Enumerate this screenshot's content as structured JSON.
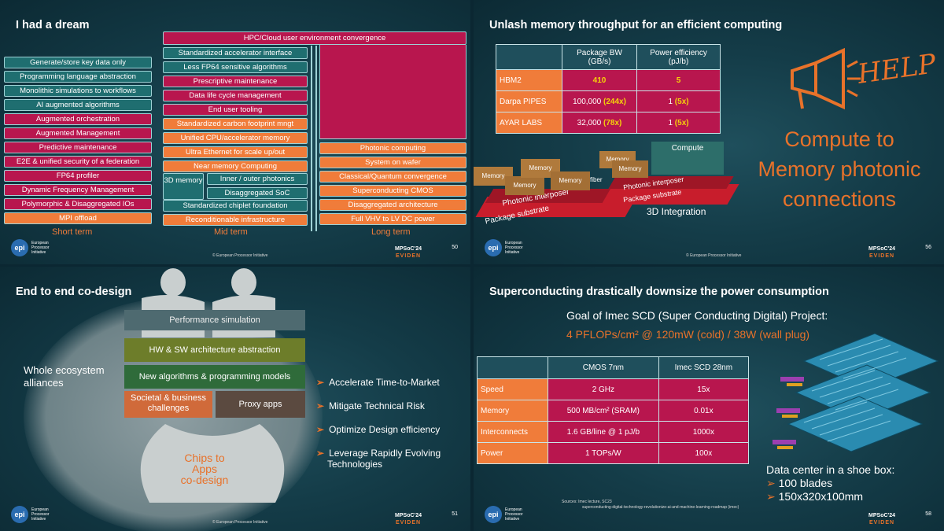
{
  "q1": {
    "title": "I had a dream",
    "top_banner": "HPC/Cloud user environment convergence",
    "short_term": [
      "Generate/store key data only",
      "Programming language abstraction",
      "Monolithic simulations to workflows",
      "AI augmented algorithms",
      "Augmented orchestration",
      "Augmented Management",
      "Predictive maintenance",
      "E2E & unified security of a federation",
      "FP64 profiler",
      "Dynamic Frequency Management",
      "Polymorphic & Disaggregated IOs",
      "MPI offload"
    ],
    "mid_term": [
      "Standardized accelerator interface",
      "Less FP64 sensitive algorithms",
      "Prescriptive maintenance",
      "Data life cycle management",
      "End user tooling",
      "Standardized carbon footprint mngt",
      "Unified CPU/accelerator memory",
      "Ultra Ethernet for scale up/out",
      "Near memory Computing"
    ],
    "mid_3d": "3D memory",
    "mid_photonics": "Inner / outer photonics",
    "mid_soc": "Disaggregated SoC",
    "mid_chiplet": "Standardized chiplet foundation",
    "mid_reconf": "Reconditionable infrastructure",
    "long_term": [
      "Photonic computing",
      "System on wafer",
      "Classical/Quantum convergence",
      "Superconducting CMOS",
      "Disaggregated architecture",
      "Full VHV to LV DC power"
    ],
    "labels": {
      "short": "Short term",
      "mid": "Mid term",
      "long": "Long term"
    },
    "page": "50"
  },
  "q2": {
    "title": "Unlash memory throughput for an efficient computing",
    "table": {
      "headers": [
        "",
        "Package BW (GB/s)",
        "Power efficiency (pJ/b)"
      ],
      "rows": [
        {
          "name": "HBM2",
          "bw": "410",
          "bw_x": "",
          "pe": "5",
          "pe_x": ""
        },
        {
          "name": "Darpa PIPES",
          "bw": "100,000",
          "bw_x": "(244x)",
          "pe": "1",
          "pe_x": "(5x)"
        },
        {
          "name": "AYAR LABS",
          "bw": "32,000",
          "bw_x": "(78x)",
          "pe": "1",
          "pe_x": "(5x)"
        }
      ]
    },
    "help": "HELP",
    "callout": [
      "Compute to",
      "Memory photonic",
      "connections"
    ],
    "diagram": {
      "memory": "Memory",
      "fiber": "fiber",
      "compute": "Compute",
      "interposer": "Photonic interposer",
      "substrate": "Package substrate",
      "integration": "3D Integration"
    },
    "page": "56"
  },
  "q3": {
    "title": "End to end co-design",
    "layers": [
      "Performance simulation",
      "HW & SW architecture abstraction",
      "New algorithms & programming models"
    ],
    "societal": "Societal & business challenges",
    "proxy": "Proxy apps",
    "ecosystem": "Whole ecosystem alliances",
    "chips": [
      "Chips to",
      "Apps",
      "co-design"
    ],
    "bullets": [
      "Accelerate Time-to-Market",
      "Mitigate Technical Risk",
      "Optimize Design efficiency",
      "Leverage Rapidly Evolving Technologies"
    ],
    "page": "51"
  },
  "q4": {
    "title": "Superconducting drastically downsize the power consumption",
    "goal": "Goal of Imec  SCD (Super Conducting Digital) Project:",
    "target": "4 PFLOPs/cm² @ 120mW (cold) / 38W (wall plug)",
    "table": {
      "headers": [
        "",
        "CMOS 7nm",
        "Imec SCD 28nm"
      ],
      "rows": [
        {
          "name": "Speed",
          "cmos": "2 GHz",
          "scd": "15x"
        },
        {
          "name": "Memory",
          "cmos": "500 MB/cm² (SRAM)",
          "scd": "0.01x"
        },
        {
          "name": "Interconnects",
          "cmos": "1.6 GB/line @ 1 pJ/b",
          "scd": "1000x"
        },
        {
          "name": "Power",
          "cmos": "1 TOPs/W",
          "scd": "100x"
        }
      ]
    },
    "dc_title": "Data center in a shoe box:",
    "dc_items": [
      "100 blades",
      "150x320x100mm"
    ],
    "sources": "Sources:   Imec lecture, SC23",
    "source_url": "superconducting-digital-technology-revolutionize-ai-and-machine-learning-roadmap (imec)",
    "page": "58"
  },
  "footer": {
    "copyright": "© European Processor Initiative",
    "epi": "epi",
    "epi_name": "European Processor Initiative",
    "mpsoc": "MPSoC'24",
    "eviden": "EVIDEN"
  }
}
